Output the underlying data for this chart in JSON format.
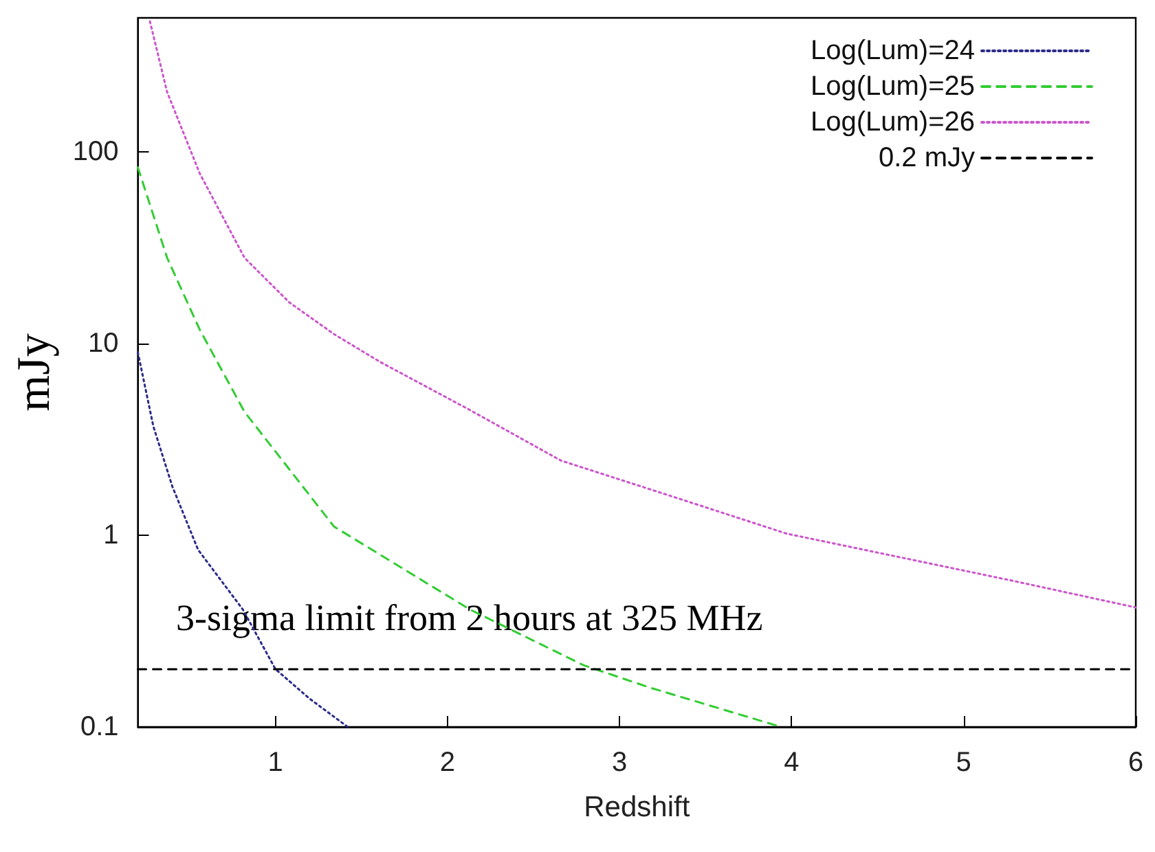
{
  "chart_data": {
    "type": "line",
    "xlabel": "Redshift",
    "ylabel": "mJy",
    "xlim": [
      0.2,
      6
    ],
    "ylim": [
      0.1,
      500
    ],
    "xticks": [
      1,
      2,
      3,
      4,
      5,
      6
    ],
    "yticks": [
      0.1,
      1,
      10,
      100
    ],
    "log": "y",
    "grid": false,
    "legend": "top right",
    "marker": "none",
    "series": [
      {
        "name": "Log(Lum)=24",
        "color": "#2b2b8c",
        "line_style": "dotted",
        "x": [
          0.2,
          0.29,
          0.4,
          0.55,
          0.81,
          1.0,
          1.2,
          1.42
        ],
        "values": [
          9,
          3.7,
          1.8,
          0.84,
          0.41,
          0.2,
          0.14,
          0.1
        ]
      },
      {
        "name": "Log(Lum)=25",
        "color": "#33cc33",
        "line_style": "dashed",
        "x": [
          0.2,
          0.37,
          0.56,
          0.82,
          1.34,
          2.13,
          2.79,
          3.18,
          3.94
        ],
        "values": [
          83,
          28,
          11.8,
          4.4,
          1.11,
          0.41,
          0.21,
          0.16,
          0.1
        ]
      },
      {
        "name": "Log(Lum)=26",
        "color": "#cc55cc",
        "line_style": "dotted",
        "x": [
          0.27,
          0.37,
          0.56,
          0.82,
          1.08,
          1.34,
          1.61,
          2.13,
          2.66,
          3.3,
          3.97,
          5.28,
          6.0
        ],
        "values": [
          480,
          205,
          77,
          28,
          16.4,
          11.2,
          8.0,
          4.5,
          2.45,
          1.6,
          1.02,
          0.58,
          0.42
        ]
      },
      {
        "name": "0.2 mJy",
        "color": "#000000",
        "line_style": "dashed",
        "x": [
          0.2,
          6
        ],
        "values": [
          0.2,
          0.2
        ]
      }
    ],
    "annotations": [
      "3-sigma limit from 2 hours at 325 MHz"
    ]
  }
}
